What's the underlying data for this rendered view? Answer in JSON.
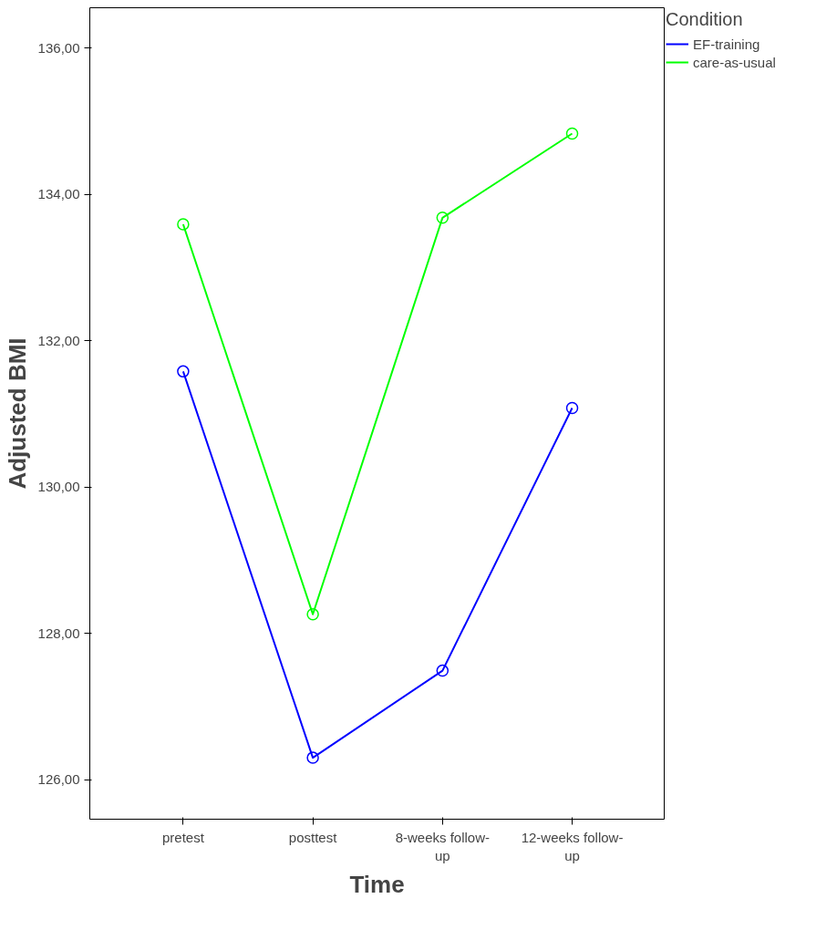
{
  "chart_data": {
    "type": "line",
    "xlabel": "Time",
    "ylabel": "Adjusted BMI",
    "legend_title": "Condition",
    "legend": "top right",
    "marker": "circle",
    "grid": false,
    "categories": [
      "pretest",
      "posttest",
      "8-weeks follow-\nup",
      "12-weeks follow-\nup"
    ],
    "ylim": [
      125.46,
      136.55
    ],
    "yticks": [
      {
        "value": 126,
        "label": "126,00"
      },
      {
        "value": 128,
        "label": "128,00"
      },
      {
        "value": 130,
        "label": "130,00"
      },
      {
        "value": 132,
        "label": "132,00"
      },
      {
        "value": 134,
        "label": "134,00"
      },
      {
        "value": 136,
        "label": "136,00"
      }
    ],
    "series": [
      {
        "name": "EF-training",
        "color": "#0000ff",
        "values": [
          131.58,
          126.3,
          127.49,
          131.08
        ]
      },
      {
        "name": "care-as-usual",
        "color": "#00ff00",
        "values": [
          133.59,
          128.26,
          133.68,
          134.83
        ]
      }
    ]
  }
}
